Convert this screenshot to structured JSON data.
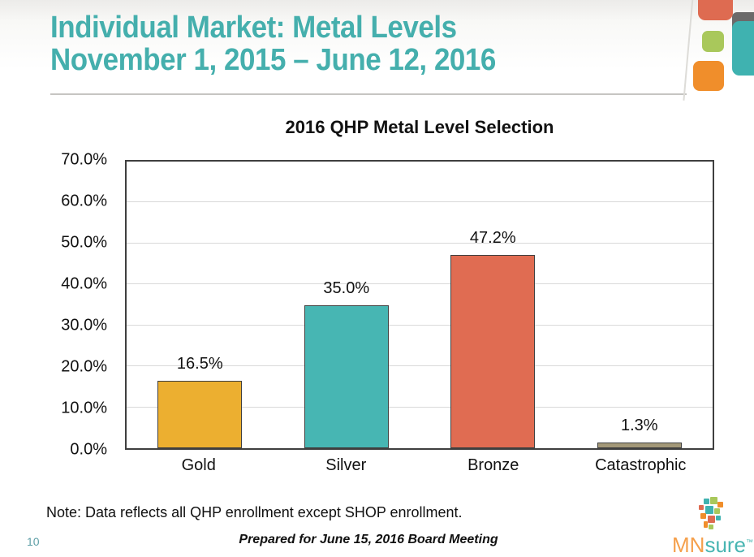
{
  "header": {
    "title_line1": "Individual Market: Metal Levels",
    "title_line2": "November 1, 2015 – June 12, 2016",
    "title_color": "#45afad"
  },
  "decoration_colors": {
    "red": "#de6b51",
    "gray": "#6b6a6a",
    "teal": "#3fb2b0",
    "green": "#a9c85b",
    "orange": "#f08e2b"
  },
  "chart_data": {
    "type": "bar",
    "title": "2016 QHP Metal Level Selection",
    "categories": [
      "Gold",
      "Silver",
      "Bronze",
      "Catastrophic"
    ],
    "values": [
      16.5,
      35.0,
      47.2,
      1.3
    ],
    "data_labels": [
      "16.5%",
      "35.0%",
      "47.2%",
      "1.3%"
    ],
    "bar_colors": [
      "#ecaf30",
      "#47b6b3",
      "#e06c52",
      "#a39878"
    ],
    "bar_border_color": "#3f3f3f",
    "xlabel": "",
    "ylabel": "",
    "ylim": [
      0,
      70
    ],
    "ytick_step": 10,
    "ytick_labels": [
      "70.0%",
      "60.0%",
      "50.0%",
      "40.0%",
      "30.0%",
      "20.0%",
      "10.0%",
      "0.0%"
    ],
    "grid": true,
    "gridline_color": "#d9d9d9",
    "legend": false
  },
  "footer": {
    "note": "Note: Data reflects all QHP enrollment except SHOP enrollment.",
    "page_number": "10",
    "page_number_color": "#5c9ea6",
    "prepared_for": "Prepared for June 15, 2016 Board Meeting",
    "logo": {
      "mn": "MN",
      "sure": "sure",
      "trademark": "™",
      "mn_color": "#f5a04c",
      "sure_color": "#48b5b2"
    }
  }
}
